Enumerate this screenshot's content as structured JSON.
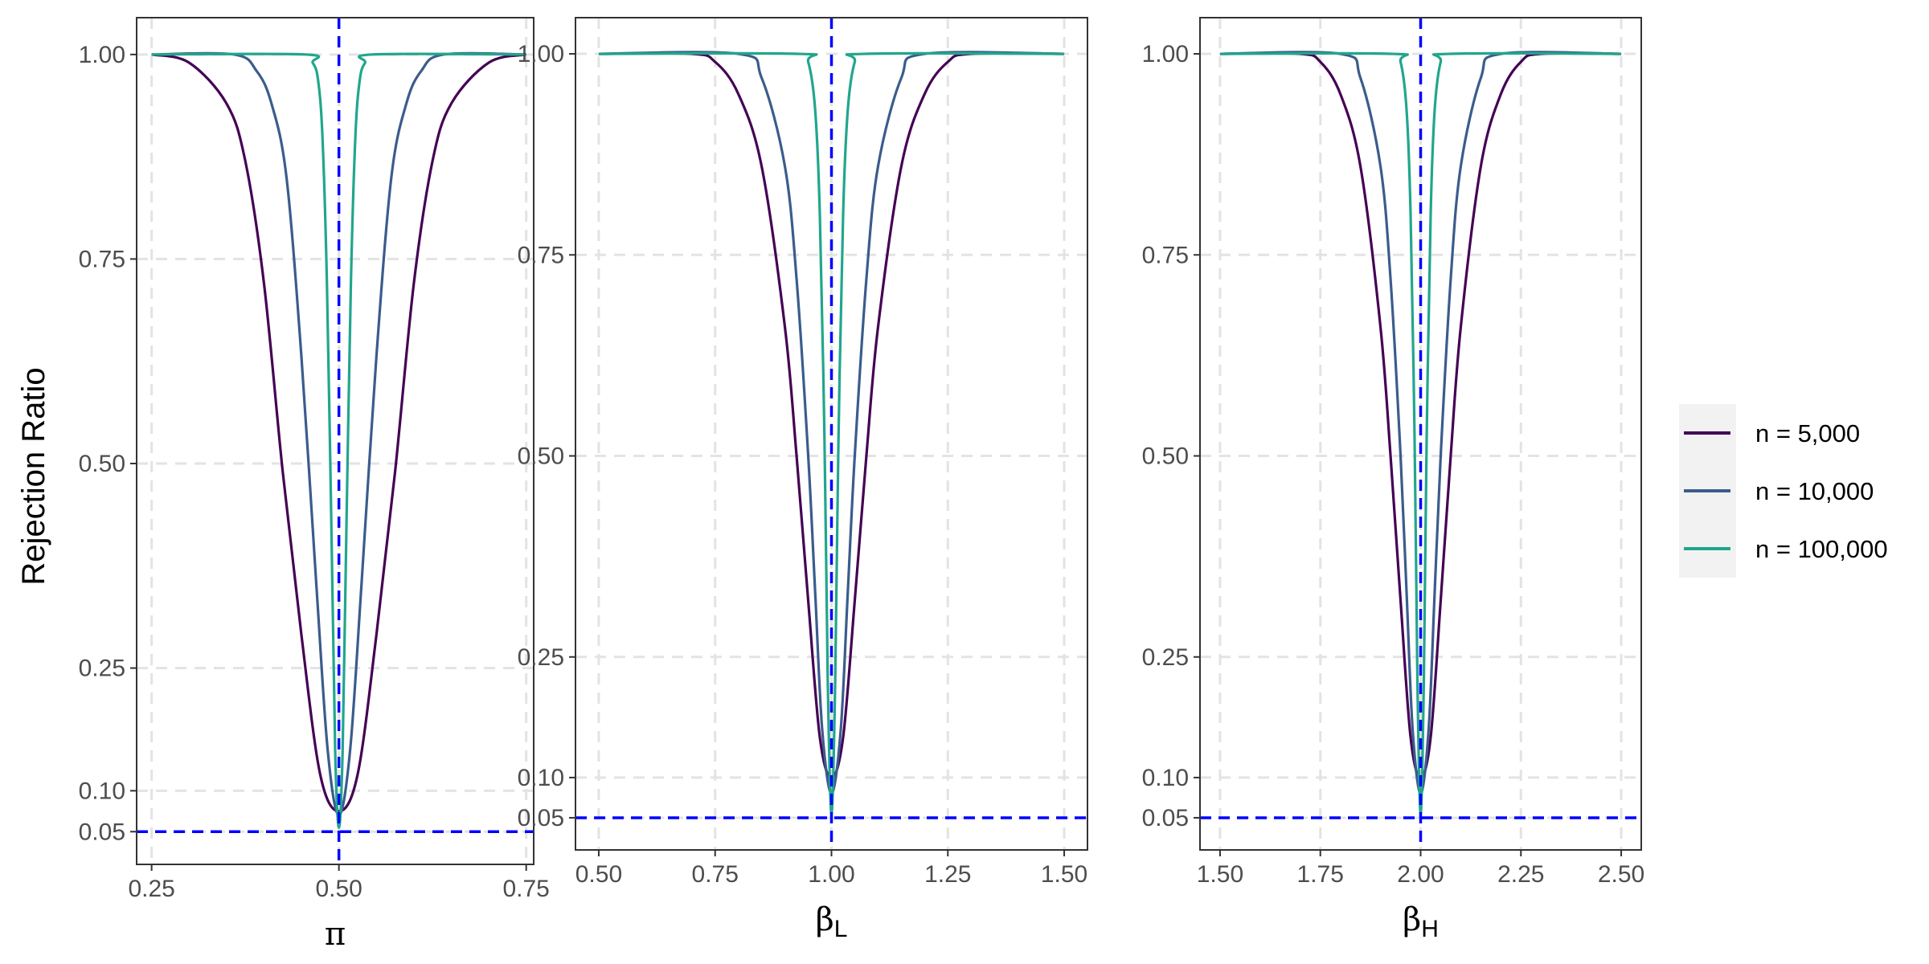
{
  "figure": {
    "ylabel": "Rejection Ratio"
  },
  "legend": {
    "items": [
      {
        "label": "n = 5,000",
        "color": "#440154"
      },
      {
        "label": "n = 10,000",
        "color": "#3B5C8C"
      },
      {
        "label": "n = 100,000",
        "color": "#21A68C"
      }
    ]
  },
  "colors": {
    "reference_lines": "#0000FF",
    "grid": "#E3E3E3",
    "panel_border": "#333333"
  },
  "chart_data": [
    {
      "type": "line",
      "xlabel": "π",
      "xlabel_base": "π",
      "xlabel_sub": "",
      "ylabel": "Rejection Ratio",
      "xlim": [
        0.23,
        0.76
      ],
      "ylim": [
        0.01,
        1.045
      ],
      "xticks": [
        0.25,
        0.5,
        0.75
      ],
      "xtick_labels": [
        "0.25",
        "0.50",
        "0.75"
      ],
      "yticks": [
        0.05,
        0.1,
        0.25,
        0.5,
        0.75,
        1.0
      ],
      "ytick_labels": [
        "0.05",
        "0.10",
        "0.25",
        "0.50",
        "0.75",
        "1.00"
      ],
      "reference_x": 0.5,
      "reference_y": 0.05,
      "grid": true,
      "x_centre": 0.5,
      "series": [
        {
          "name": "n = 5,000",
          "color": "#440154",
          "x_offsets": [
            -0.25,
            -0.2,
            -0.15,
            -0.125,
            -0.1,
            -0.075,
            -0.05,
            -0.025,
            0.0,
            0.025,
            0.05,
            0.075,
            0.1,
            0.125,
            0.15,
            0.2,
            0.25
          ],
          "y": [
            1.0,
            0.99,
            0.94,
            0.87,
            0.72,
            0.49,
            0.29,
            0.12,
            0.075,
            0.12,
            0.29,
            0.49,
            0.72,
            0.87,
            0.94,
            0.99,
            1.0
          ]
        },
        {
          "name": "n = 10,000",
          "color": "#3B5C8C",
          "x_offsets": [
            -0.25,
            -0.14,
            -0.11,
            -0.09,
            -0.07,
            -0.05,
            -0.03,
            -0.015,
            0.0,
            0.015,
            0.03,
            0.05,
            0.07,
            0.09,
            0.11,
            0.14,
            0.25
          ],
          "y": [
            1.0,
            1.0,
            0.98,
            0.94,
            0.85,
            0.63,
            0.35,
            0.15,
            0.07,
            0.15,
            0.35,
            0.63,
            0.85,
            0.94,
            0.98,
            1.0,
            1.0
          ]
        },
        {
          "name": "n = 100,000",
          "color": "#21A68C",
          "x_offsets": [
            -0.25,
            -0.045,
            -0.035,
            -0.028,
            -0.022,
            -0.016,
            -0.01,
            -0.005,
            0.0,
            0.005,
            0.01,
            0.016,
            0.022,
            0.028,
            0.035,
            0.045,
            0.25
          ],
          "y": [
            1.0,
            1.0,
            0.99,
            0.97,
            0.9,
            0.72,
            0.42,
            0.15,
            0.055,
            0.15,
            0.42,
            0.72,
            0.9,
            0.97,
            0.99,
            1.0,
            1.0
          ]
        }
      ]
    },
    {
      "type": "line",
      "xlabel": "βL",
      "xlabel_base": "β",
      "xlabel_sub": "L",
      "ylabel": "",
      "xlim": [
        0.45,
        1.55
      ],
      "ylim": [
        0.01,
        1.045
      ],
      "xticks": [
        0.5,
        0.75,
        1.0,
        1.25,
        1.5
      ],
      "xtick_labels": [
        "0.50",
        "0.75",
        "1.00",
        "1.25",
        "1.50"
      ],
      "yticks": [
        0.05,
        0.1,
        0.25,
        0.5,
        0.75,
        1.0
      ],
      "ytick_labels": [
        "0.05",
        "0.10",
        "0.25",
        "0.50",
        "0.75",
        "1.00"
      ],
      "reference_x": 1.0,
      "reference_y": 0.05,
      "grid": true,
      "x_centre": 1.0,
      "series": [
        {
          "name": "n = 5,000",
          "color": "#440154",
          "x_offsets": [
            -0.5,
            -0.3,
            -0.25,
            -0.2,
            -0.15,
            -0.1,
            -0.075,
            -0.05,
            -0.025,
            0.0,
            0.025,
            0.05,
            0.075,
            0.1,
            0.15,
            0.2,
            0.25,
            0.3,
            0.5
          ],
          "y": [
            1.0,
            1.0,
            0.99,
            0.95,
            0.86,
            0.66,
            0.5,
            0.32,
            0.15,
            0.1,
            0.15,
            0.32,
            0.5,
            0.66,
            0.86,
            0.95,
            0.99,
            1.0,
            1.0
          ]
        },
        {
          "name": "n = 10,000",
          "color": "#3B5C8C",
          "x_offsets": [
            -0.5,
            -0.2,
            -0.15,
            -0.1,
            -0.075,
            -0.05,
            -0.035,
            -0.02,
            0.0,
            0.02,
            0.035,
            0.05,
            0.075,
            0.1,
            0.15,
            0.2,
            0.5
          ],
          "y": [
            1.0,
            1.0,
            0.97,
            0.86,
            0.72,
            0.5,
            0.33,
            0.16,
            0.08,
            0.16,
            0.33,
            0.5,
            0.72,
            0.86,
            0.97,
            1.0,
            1.0
          ]
        },
        {
          "name": "n = 100,000",
          "color": "#21A68C",
          "x_offsets": [
            -0.5,
            -0.07,
            -0.05,
            -0.035,
            -0.025,
            -0.015,
            -0.008,
            0.0,
            0.008,
            0.015,
            0.025,
            0.035,
            0.05,
            0.07,
            0.5
          ],
          "y": [
            1.0,
            1.0,
            0.99,
            0.93,
            0.8,
            0.52,
            0.22,
            0.055,
            0.22,
            0.52,
            0.8,
            0.93,
            0.99,
            1.0,
            1.0
          ]
        }
      ]
    },
    {
      "type": "line",
      "xlabel": "βH",
      "xlabel_base": "β",
      "xlabel_sub": "H",
      "ylabel": "",
      "xlim": [
        1.45,
        2.55
      ],
      "ylim": [
        0.01,
        1.045
      ],
      "xticks": [
        1.5,
        1.75,
        2.0,
        2.25,
        2.5
      ],
      "xtick_labels": [
        "1.50",
        "1.75",
        "2.00",
        "2.25",
        "2.50"
      ],
      "yticks": [
        0.05,
        0.1,
        0.25,
        0.5,
        0.75,
        1.0
      ],
      "ytick_labels": [
        "0.05",
        "0.10",
        "0.25",
        "0.50",
        "0.75",
        "1.00"
      ],
      "reference_x": 2.0,
      "reference_y": 0.05,
      "grid": true,
      "x_centre": 2.0,
      "series": [
        {
          "name": "n = 5,000",
          "color": "#440154",
          "x_offsets": [
            -0.5,
            -0.3,
            -0.25,
            -0.2,
            -0.15,
            -0.1,
            -0.075,
            -0.05,
            -0.025,
            0.0,
            0.025,
            0.05,
            0.075,
            0.1,
            0.15,
            0.2,
            0.25,
            0.3,
            0.5
          ],
          "y": [
            1.0,
            1.0,
            0.99,
            0.95,
            0.86,
            0.66,
            0.5,
            0.32,
            0.15,
            0.1,
            0.15,
            0.32,
            0.5,
            0.66,
            0.86,
            0.95,
            0.99,
            1.0,
            1.0
          ]
        },
        {
          "name": "n = 10,000",
          "color": "#3B5C8C",
          "x_offsets": [
            -0.5,
            -0.2,
            -0.15,
            -0.1,
            -0.075,
            -0.05,
            -0.035,
            -0.02,
            0.0,
            0.02,
            0.035,
            0.05,
            0.075,
            0.1,
            0.15,
            0.2,
            0.5
          ],
          "y": [
            1.0,
            1.0,
            0.97,
            0.86,
            0.72,
            0.5,
            0.33,
            0.16,
            0.08,
            0.16,
            0.33,
            0.5,
            0.72,
            0.86,
            0.97,
            1.0,
            1.0
          ]
        },
        {
          "name": "n = 100,000",
          "color": "#21A68C",
          "x_offsets": [
            -0.5,
            -0.07,
            -0.05,
            -0.035,
            -0.025,
            -0.015,
            -0.008,
            0.0,
            0.008,
            0.015,
            0.025,
            0.035,
            0.05,
            0.07,
            0.5
          ],
          "y": [
            1.0,
            1.0,
            0.99,
            0.93,
            0.8,
            0.52,
            0.22,
            0.055,
            0.22,
            0.52,
            0.8,
            0.93,
            0.99,
            1.0,
            1.0
          ]
        }
      ]
    }
  ]
}
